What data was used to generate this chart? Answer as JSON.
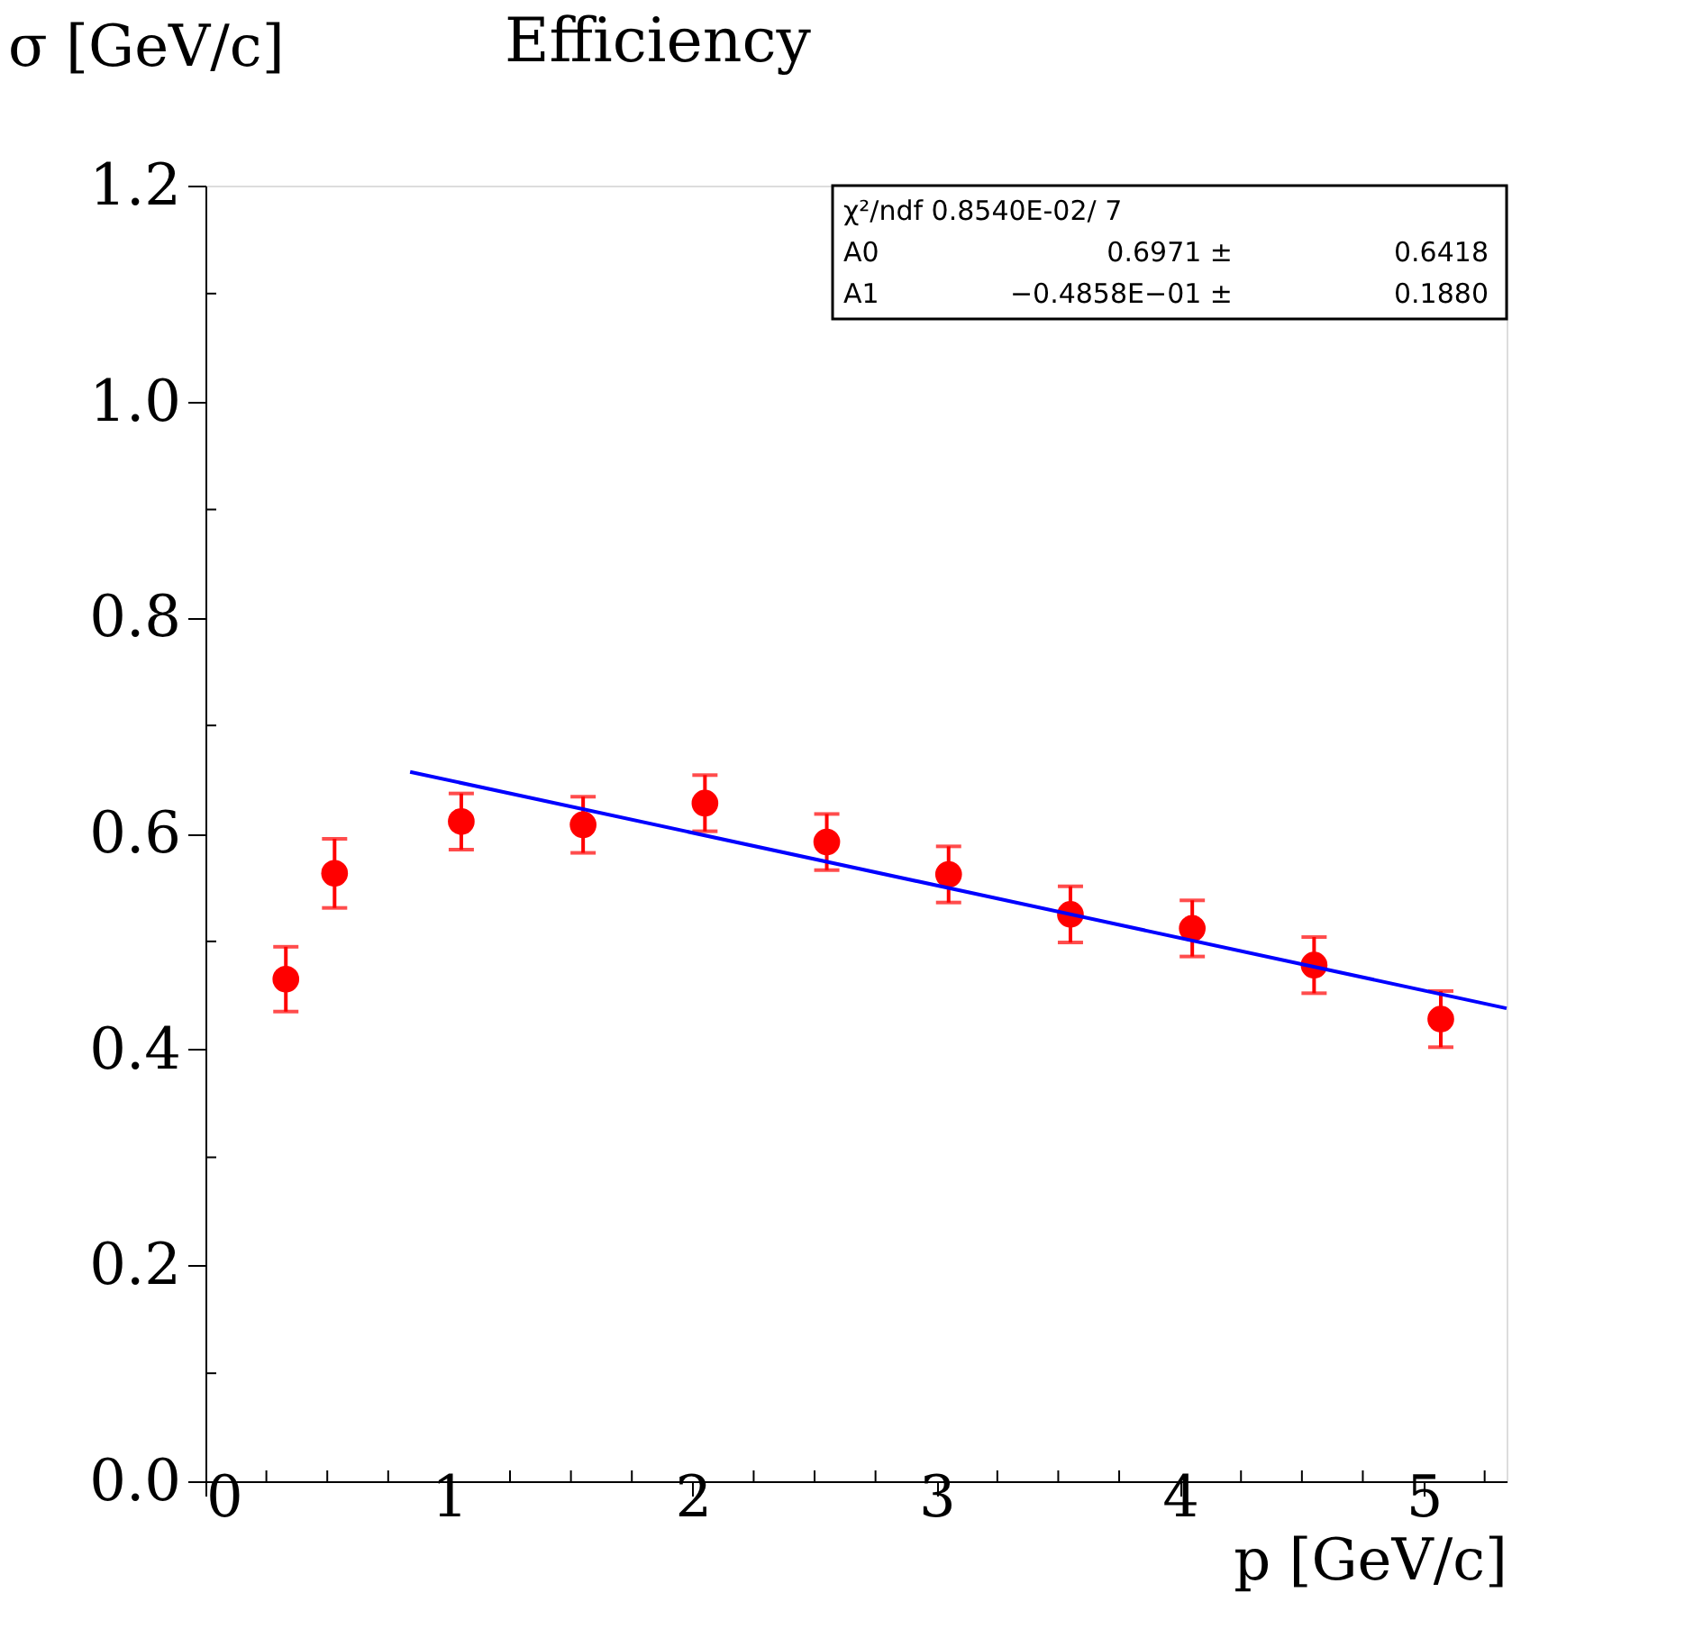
{
  "chart_data": {
    "type": "scatter",
    "title": "Efficiency",
    "xlabel": "p [GeV/c]",
    "ylabel": "σ [GeV/c]",
    "xlim": [
      0,
      5.34
    ],
    "ylim": [
      0,
      1.2
    ],
    "xticks": [
      0,
      {
        "value": 0.25,
        "label": null
      },
      {
        "value": 0.5,
        "label": null
      },
      {
        "value": 0.75,
        "label": null
      },
      1,
      {
        "value": 1.25,
        "label": null
      },
      {
        "value": 1.5,
        "label": null
      },
      {
        "value": 1.75,
        "label": null
      },
      2,
      {
        "value": 2.25,
        "label": null
      },
      {
        "value": 2.5,
        "label": null
      },
      {
        "value": 2.75,
        "label": null
      },
      3,
      {
        "value": 3.25,
        "label": null
      },
      {
        "value": 3.5,
        "label": null
      },
      {
        "value": 3.75,
        "label": null
      },
      4,
      {
        "value": 4.25,
        "label": null
      },
      {
        "value": 4.5,
        "label": null
      },
      {
        "value": 4.75,
        "label": null
      },
      5,
      {
        "value": 5.25,
        "label": null
      }
    ],
    "yticks": [
      {
        "value": 0,
        "label": "0.0"
      },
      {
        "value": 0.1,
        "label": null
      },
      {
        "value": 0.2,
        "label": "0.2"
      },
      {
        "value": 0.3,
        "label": null
      },
      {
        "value": 0.4,
        "label": "0.4"
      },
      {
        "value": 0.5,
        "label": null
      },
      {
        "value": 0.6,
        "label": "0.6"
      },
      {
        "value": 0.7,
        "label": null
      },
      {
        "value": 0.8,
        "label": "0.8"
      },
      {
        "value": 0.9,
        "label": null
      },
      {
        "value": 1.0,
        "label": "1.0"
      },
      {
        "value": 1.1,
        "label": null
      },
      {
        "value": 1.2,
        "label": "1.2"
      }
    ],
    "grid": false,
    "marker": "circle",
    "series": [
      {
        "type": "scatter",
        "color": "#ff0000",
        "x": [
          0.33,
          0.53,
          1.05,
          1.55,
          2.05,
          2.55,
          3.05,
          3.55,
          4.05,
          4.55,
          5.07
        ],
        "values": [
          0.465,
          0.563,
          0.611,
          0.608,
          0.628,
          0.592,
          0.562,
          0.525,
          0.512,
          0.478,
          0.428
        ],
        "errors": [
          0.03,
          0.032,
          0.026,
          0.026,
          0.026,
          0.026,
          0.026,
          0.026,
          0.026,
          0.026,
          0.026
        ]
      },
      {
        "type": "line",
        "color": "#0000ff",
        "marker": "none",
        "x": [
          0.84,
          5.34
        ],
        "values": [
          0.657,
          0.438
        ]
      }
    ],
    "annotations": [
      "χ²/ndf  0.8540E-02/   7",
      "A0",
      "0.6971 ±",
      "0.6418",
      "A1",
      "−0.4858E−01 ±",
      "0.1880"
    ]
  }
}
